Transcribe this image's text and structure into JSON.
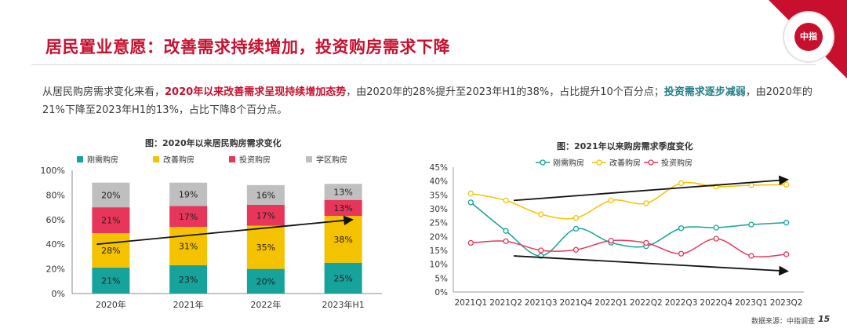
{
  "header": {
    "title": "居民置业意愿：改善需求持续增加，投资购房需求下降",
    "logo_text": "中指"
  },
  "intro": {
    "p1": "从居民购房需求变化来看，",
    "p2": "2020年以来改善需求呈现持续增加态势",
    "p3": "，由2020年的28%提升至2023年H1的38%，占比提升10个百分点；",
    "p4": "投资需求逐步减弱",
    "p5": "，由2020年的21%下降至2023年H1的13%，占比下降8个百分点。"
  },
  "colors": {
    "teal": "#16a39b",
    "gold": "#f5c200",
    "red": "#e8365a",
    "gray": "#bfbfbf",
    "brand": "#c8102e"
  },
  "chart_data": [
    {
      "type": "bar",
      "stacked": true,
      "title": "图：2020年以来居民购房需求变化",
      "categories": [
        "2020年",
        "2021年",
        "2022年",
        "2023年H1"
      ],
      "series": [
        {
          "name": "刚需购房",
          "values": [
            21,
            23,
            20,
            25
          ],
          "labels": [
            "21%",
            "23%",
            "20%",
            "25%"
          ]
        },
        {
          "name": "改善购房",
          "values": [
            28,
            31,
            35,
            38
          ],
          "labels": [
            "28%",
            "31%",
            "35%",
            "38%"
          ]
        },
        {
          "name": "投资购房",
          "values": [
            21,
            17,
            17,
            13
          ],
          "labels": [
            "21%",
            "17%",
            "17%",
            "13%"
          ]
        },
        {
          "name": "学区购房",
          "values": [
            20,
            19,
            16,
            13
          ],
          "labels": [
            "20%",
            "19%",
            "16%",
            "13%"
          ]
        }
      ],
      "y_ticks": [
        "0%",
        "20%",
        "40%",
        "60%",
        "80%",
        "100%"
      ],
      "ylim": [
        0,
        100
      ],
      "legend_position": "top",
      "trend_arrow": {
        "from": [
          "2020年",
          40
        ],
        "to": [
          "2023年H1",
          60
        ]
      }
    },
    {
      "type": "line",
      "title": "图：2021年以来购房需求季度变化",
      "categories": [
        "2021Q1",
        "2021Q2",
        "2021Q3",
        "2021Q4",
        "2022Q1",
        "2022Q2",
        "2022Q3",
        "2022Q4",
        "2023Q1",
        "2023Q2"
      ],
      "series": [
        {
          "name": "刚需购房",
          "values": [
            32.3,
            22.0,
            13.0,
            22.8,
            17.8,
            16.5,
            23.0,
            23.2,
            24.3,
            25.0
          ]
        },
        {
          "name": "改善购房",
          "values": [
            35.5,
            33.0,
            28.0,
            26.7,
            33.0,
            32.0,
            39.2,
            38.0,
            38.5,
            38.7
          ]
        },
        {
          "name": "投资购房",
          "values": [
            17.7,
            18.3,
            15.0,
            15.2,
            18.5,
            17.7,
            13.8,
            19.2,
            13.0,
            13.6
          ]
        }
      ],
      "y_ticks": [
        "0%",
        "5%",
        "10%",
        "15%",
        "20%",
        "25%",
        "30%",
        "35%",
        "40%",
        "45%"
      ],
      "ylim": [
        0,
        45
      ],
      "legend_position": "top",
      "trend_arrows": [
        {
          "from": [
            "2021Q2",
            33
          ],
          "to": [
            "2023Q2",
            40.5
          ]
        },
        {
          "from": [
            "2021Q2",
            13
          ],
          "to": [
            "2023Q2",
            7.5
          ]
        }
      ]
    }
  ],
  "footer": {
    "source": "数据来源：中指调查",
    "page": "15"
  }
}
